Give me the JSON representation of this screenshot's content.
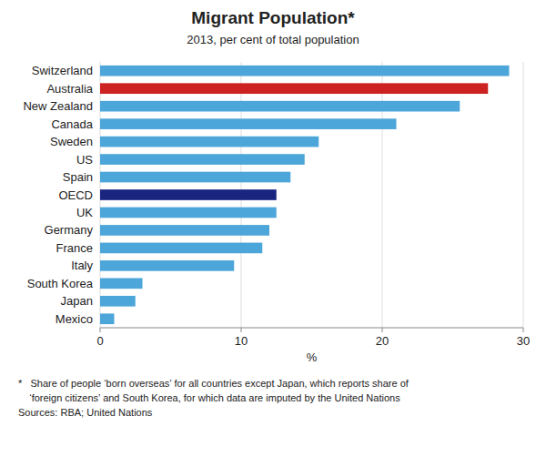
{
  "chart_data": {
    "type": "bar",
    "orientation": "horizontal",
    "title": "Migrant Population*",
    "subtitle": "2013, per cent of total population",
    "xlabel": "%",
    "annotations": [
      "*   Share of people ‘born overseas’ for all countries except Japan, which reports share of",
      "    ‘foreign citizens’ and South Korea, for which data are imputed by the United Nations",
      "Sources: RBA; United Nations"
    ],
    "categories": [
      "Switzerland",
      "Australia",
      "New Zealand",
      "Canada",
      "Sweden",
      "US",
      "Spain",
      "OECD",
      "UK",
      "Germany",
      "France",
      "Italy",
      "South Korea",
      "Japan",
      "Mexico"
    ],
    "values": [
      29.0,
      27.5,
      25.5,
      21.0,
      15.5,
      14.5,
      13.5,
      12.5,
      12.5,
      12.0,
      11.5,
      9.5,
      3.0,
      2.5,
      1.0
    ],
    "colors": [
      "#4da6d9",
      "#cc2222",
      "#4da6d9",
      "#4da6d9",
      "#4da6d9",
      "#4da6d9",
      "#4da6d9",
      "#1a2580",
      "#4da6d9",
      "#4da6d9",
      "#4da6d9",
      "#4da6d9",
      "#4da6d9",
      "#4da6d9",
      "#4da6d9"
    ],
    "xlim": [
      0,
      30
    ],
    "xticks": [
      0,
      10,
      20,
      30
    ],
    "grid": true
  }
}
